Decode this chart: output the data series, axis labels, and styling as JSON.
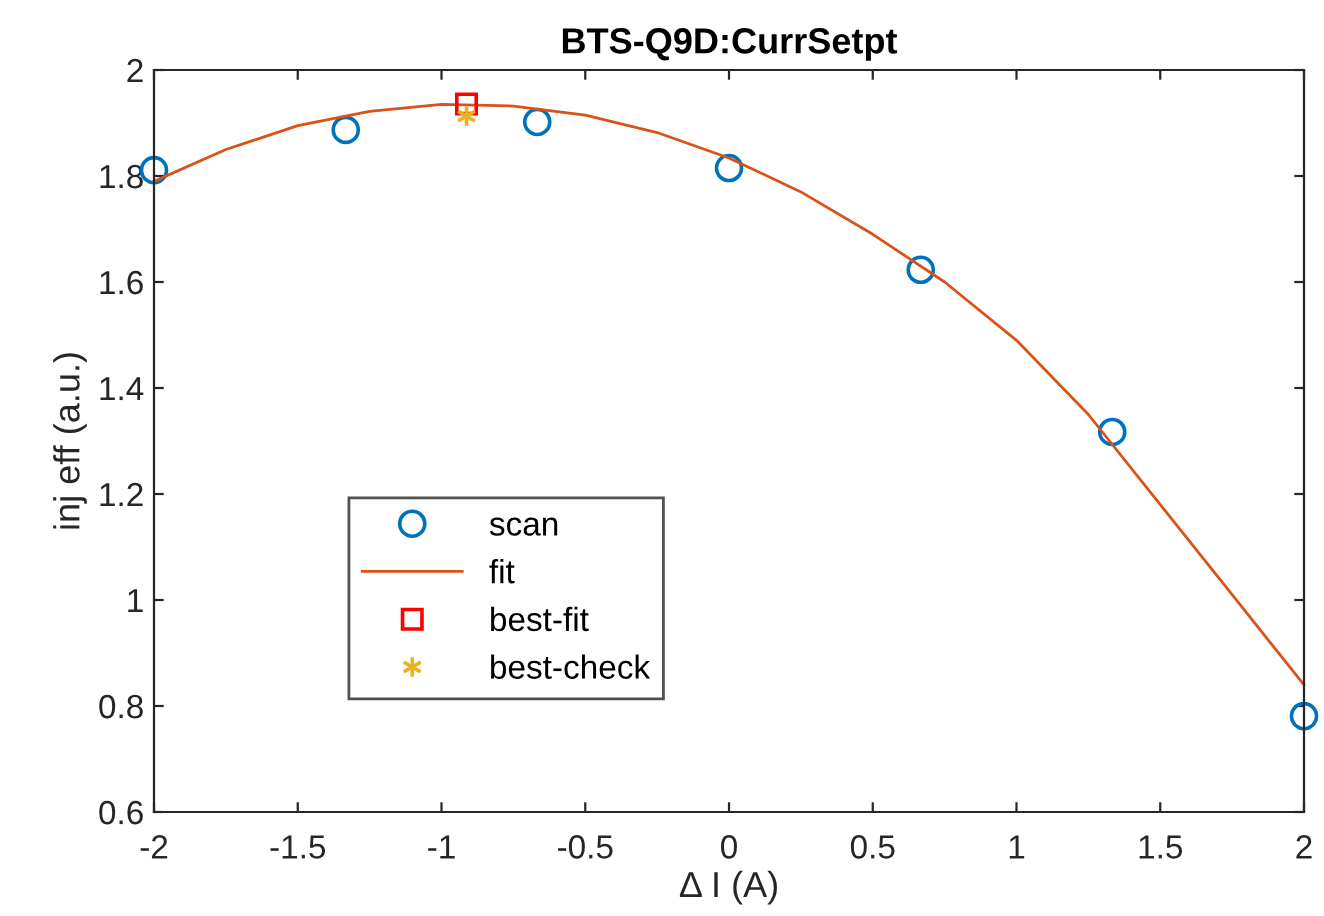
{
  "chart_data": {
    "type": "scatter",
    "title": "BTS-Q9D:CurrSetpt",
    "xlabel": "Δ I (A)",
    "ylabel": "inj eff (a.u.)",
    "xlim": [
      -2,
      2
    ],
    "xticks": [
      -2,
      -1.5,
      -1,
      -0.5,
      0,
      0.5,
      1,
      1.5,
      2
    ],
    "ylim": [
      0.6,
      2
    ],
    "yticks": [
      0.6,
      0.8,
      1,
      1.2,
      1.4,
      1.6,
      1.8,
      2
    ],
    "grid": false,
    "legend": "bottom left",
    "series": [
      {
        "name": "scan",
        "marker": "circle",
        "color": "#0072bd",
        "x": [
          -2,
          -1.333,
          -0.667,
          0,
          0.667,
          1.333,
          2
        ],
        "values": [
          1.811,
          1.887,
          1.902,
          1.815,
          1.623,
          1.317,
          0.781
        ]
      },
      {
        "name": "fit",
        "type": "line",
        "marker": "none",
        "line_style": "solid",
        "color": "#d95319",
        "x": [
          -2,
          -1.75,
          -1.5,
          -1.25,
          -1,
          -0.75,
          -0.5,
          -0.25,
          0,
          0.25,
          0.5,
          0.75,
          1,
          1.25,
          1.5,
          1.75,
          2
        ],
        "values": [
          1.79,
          1.85,
          1.895,
          1.922,
          1.935,
          1.932,
          1.915,
          1.882,
          1.834,
          1.77,
          1.69,
          1.6,
          1.49,
          1.35,
          1.18,
          1.01,
          0.84
        ]
      },
      {
        "name": "best-fit",
        "marker": "square",
        "color": "#ff0000",
        "x": [
          -0.913
        ],
        "values": [
          1.936
        ]
      },
      {
        "name": "best-check",
        "marker": "cross",
        "color": "#edb120",
        "x": [
          -0.913
        ],
        "values": [
          1.913
        ]
      }
    ]
  }
}
